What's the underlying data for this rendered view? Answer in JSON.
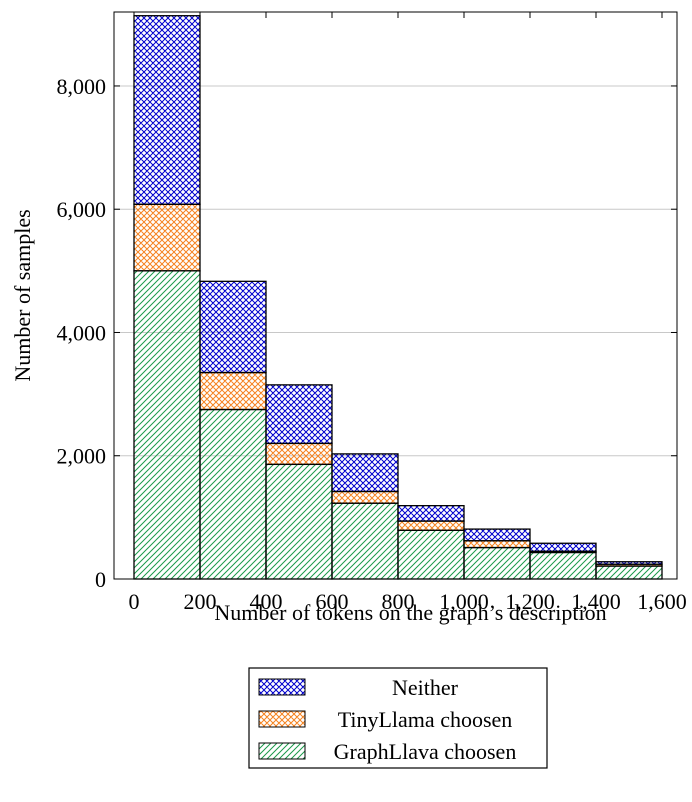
{
  "chart_data": {
    "type": "bar",
    "stacked": true,
    "bin_edges": [
      0,
      200,
      400,
      600,
      800,
      1000,
      1200,
      1400,
      1600
    ],
    "series": [
      {
        "name": "GraphLlava choosen",
        "color": "#1a9a4a",
        "pattern": "diagonal-lines",
        "values": [
          5000,
          2750,
          1860,
          1230,
          790,
          510,
          430,
          210
        ]
      },
      {
        "name": "TinyLlama choosen",
        "color": "#f5821f",
        "pattern": "crosshatch",
        "values": [
          1080,
          600,
          340,
          190,
          150,
          110,
          20,
          30
        ]
      },
      {
        "name": "Neither",
        "color": "#0000cc",
        "pattern": "crosshatch",
        "values": [
          3060,
          1480,
          950,
          610,
          250,
          190,
          130,
          40
        ]
      }
    ],
    "legend_order": [
      "Neither",
      "TinyLlama choosen",
      "GraphLlava choosen"
    ],
    "xlabel": "Number of tokens on the graph’s description",
    "ylabel": "Number of samples",
    "xlim": [
      0,
      1600
    ],
    "ylim": [
      0,
      9200
    ],
    "xticks": [
      0,
      200,
      400,
      600,
      800,
      1000,
      1200,
      1400,
      1600
    ],
    "xtick_labels": [
      "0",
      "200",
      "400",
      "600",
      "800",
      "1,000",
      "1,200",
      "1,400",
      "1,600"
    ],
    "yticks": [
      0,
      2000,
      4000,
      6000,
      8000
    ],
    "ytick_labels": [
      "0",
      "2,000",
      "4,000",
      "6,000",
      "8,000"
    ],
    "grid": "horizontal",
    "legend_position": "below"
  }
}
